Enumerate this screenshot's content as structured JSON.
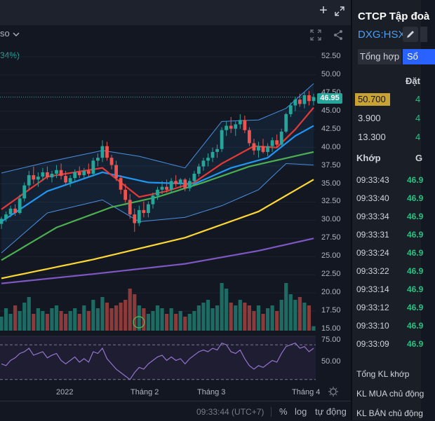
{
  "topbar": {
    "plus_icon": "plus-icon",
    "expand_icon": "expand-icon"
  },
  "toolbar": {
    "symbol_fragment": "so",
    "share_icon": "share-icon",
    "fullscreen_icon": "fullscreen-icon"
  },
  "indicator_change": "34%)",
  "price_axis": {
    "labels": [
      "52.50",
      "50.00",
      "47.50",
      "45.00",
      "42.50",
      "40.00",
      "37.50",
      "35.00",
      "32.50",
      "30.00",
      "27.50",
      "25.00",
      "22.50",
      "20.00",
      "17.50",
      "15.00"
    ],
    "last_price": "46.95",
    "last_price_color": "#26a69a"
  },
  "rsi_axis": {
    "labels": [
      "75.00",
      "50.00"
    ]
  },
  "time_axis": {
    "labels": [
      "2022",
      "Tháng 2",
      "Tháng 3",
      "Tháng 4"
    ]
  },
  "colors": {
    "up": "#26a69a",
    "down": "#ef5350",
    "ma_red": "#e53935",
    "ma_blue": "#2196f3",
    "ma_green": "#4caf50",
    "ma_yellow": "#fdd835",
    "ma_purple": "#7e57c2",
    "bollinger": "#4a90e2",
    "rsi": "#9575cd"
  },
  "bottombar": {
    "time": "09:33:44 (UTC+7)",
    "percent": "%",
    "log": "log",
    "auto": "tự động"
  },
  "side": {
    "title": "CTCP Tập đoà",
    "ticker": "DXG:HSX",
    "tabs": [
      "Tổng hợp",
      "Sổ"
    ],
    "order_header": "Đặt",
    "orderbook": [
      {
        "price": "50.700",
        "highlight": true,
        "value": "4"
      },
      {
        "price": "3.900",
        "highlight": false,
        "value": "4"
      },
      {
        "price": "13.300",
        "highlight": false,
        "value": "4"
      }
    ],
    "khop_label": "Khớp",
    "khop_col2": "G",
    "trades": [
      {
        "time": "09:33:43",
        "price": "46.9"
      },
      {
        "time": "09:33:40",
        "price": "46.9"
      },
      {
        "time": "09:33:34",
        "price": "46.9"
      },
      {
        "time": "09:33:31",
        "price": "46.9"
      },
      {
        "time": "09:33:24",
        "price": "46.9"
      },
      {
        "time": "09:33:22",
        "price": "46.9"
      },
      {
        "time": "09:33:14",
        "price": "46.9"
      },
      {
        "time": "09:33:12",
        "price": "46.9"
      },
      {
        "time": "09:33:10",
        "price": "46.9"
      },
      {
        "time": "09:33:09",
        "price": "46.9"
      }
    ],
    "summary": [
      "Tổng KL khớp",
      "KL MUA chủ động",
      "KL BÁN chủ động"
    ]
  },
  "chart_data": {
    "type": "candlestick",
    "ylim": [
      15,
      52.5
    ],
    "candles": [
      [
        29.5,
        30.5,
        28.8,
        30.2
      ],
      [
        30.2,
        31.2,
        29.8,
        30.8
      ],
      [
        30.8,
        32.0,
        30.4,
        31.6
      ],
      [
        31.6,
        32.2,
        30.6,
        31.0
      ],
      [
        31.0,
        33.5,
        30.8,
        33.0
      ],
      [
        33.0,
        35.2,
        32.6,
        34.8
      ],
      [
        34.8,
        36.8,
        34.2,
        36.2
      ],
      [
        36.2,
        37.4,
        35.0,
        35.6
      ],
      [
        35.6,
        36.6,
        34.6,
        36.0
      ],
      [
        36.0,
        37.2,
        35.4,
        36.6
      ],
      [
        36.6,
        37.4,
        35.6,
        35.9
      ],
      [
        35.9,
        36.8,
        35.2,
        36.4
      ],
      [
        36.4,
        37.6,
        35.8,
        36.9
      ],
      [
        36.9,
        37.8,
        35.6,
        36.1
      ],
      [
        36.1,
        36.8,
        34.8,
        35.2
      ],
      [
        35.2,
        36.2,
        34.6,
        35.8
      ],
      [
        35.8,
        37.0,
        35.2,
        36.6
      ],
      [
        36.6,
        37.4,
        35.8,
        36.2
      ],
      [
        36.2,
        37.2,
        35.6,
        36.8
      ],
      [
        36.8,
        37.8,
        36.0,
        36.4
      ],
      [
        36.4,
        38.6,
        36.0,
        38.2
      ],
      [
        38.2,
        39.2,
        37.4,
        38.6
      ],
      [
        38.6,
        41.0,
        38.0,
        40.2
      ],
      [
        40.2,
        40.8,
        38.2,
        38.6
      ],
      [
        38.6,
        39.0,
        37.0,
        37.6
      ],
      [
        37.6,
        38.2,
        35.4,
        35.8
      ],
      [
        35.8,
        36.2,
        33.6,
        34.2
      ],
      [
        34.2,
        35.0,
        32.4,
        32.8
      ],
      [
        32.8,
        33.6,
        30.2,
        30.8
      ],
      [
        30.8,
        31.6,
        28.4,
        29.6
      ],
      [
        29.6,
        32.0,
        29.2,
        31.4
      ],
      [
        31.4,
        32.6,
        30.4,
        31.0
      ],
      [
        31.0,
        32.6,
        30.4,
        32.2
      ],
      [
        32.2,
        33.8,
        31.6,
        33.4
      ],
      [
        33.4,
        34.6,
        32.8,
        34.2
      ],
      [
        34.2,
        35.4,
        33.6,
        34.6
      ],
      [
        34.6,
        35.6,
        33.8,
        34.2
      ],
      [
        34.2,
        35.8,
        33.8,
        35.4
      ],
      [
        35.4,
        36.2,
        34.6,
        35.0
      ],
      [
        35.0,
        35.8,
        34.4,
        35.6
      ],
      [
        35.6,
        35.8,
        34.0,
        34.4
      ],
      [
        34.4,
        35.8,
        34.0,
        35.4
      ],
      [
        35.4,
        36.8,
        35.0,
        36.4
      ],
      [
        36.4,
        37.8,
        36.0,
        37.4
      ],
      [
        37.4,
        38.6,
        36.8,
        38.2
      ],
      [
        38.2,
        39.2,
        37.4,
        38.6
      ],
      [
        38.6,
        40.0,
        38.0,
        39.4
      ],
      [
        39.4,
        40.4,
        38.6,
        39.8
      ],
      [
        39.8,
        42.8,
        39.4,
        42.4
      ],
      [
        42.4,
        43.6,
        41.6,
        43.0
      ],
      [
        43.0,
        44.2,
        42.0,
        42.6
      ],
      [
        42.6,
        43.6,
        41.6,
        43.2
      ],
      [
        43.2,
        44.6,
        42.6,
        43.8
      ],
      [
        43.8,
        44.4,
        42.0,
        42.4
      ],
      [
        42.4,
        42.8,
        40.2,
        40.6
      ],
      [
        40.6,
        41.2,
        39.0,
        39.6
      ],
      [
        39.6,
        40.8,
        38.6,
        40.2
      ],
      [
        40.2,
        41.2,
        39.2,
        39.4
      ],
      [
        39.4,
        40.6,
        38.8,
        40.2
      ],
      [
        40.2,
        41.4,
        39.4,
        41.0
      ],
      [
        41.0,
        41.8,
        40.0,
        40.4
      ],
      [
        40.4,
        42.6,
        40.0,
        42.2
      ],
      [
        42.2,
        44.8,
        42.0,
        44.6
      ],
      [
        44.6,
        46.2,
        44.2,
        45.8
      ],
      [
        45.8,
        47.0,
        45.0,
        46.6
      ],
      [
        46.6,
        47.4,
        45.6,
        46.0
      ],
      [
        46.0,
        47.6,
        45.4,
        47.2
      ],
      [
        47.2,
        47.8,
        45.8,
        46.4
      ],
      [
        46.4,
        47.4,
        45.8,
        46.95
      ]
    ],
    "volume_rel": [
      0.25,
      0.4,
      0.3,
      0.45,
      0.35,
      0.5,
      0.6,
      0.3,
      0.4,
      0.35,
      0.3,
      0.4,
      0.45,
      0.35,
      0.3,
      0.35,
      0.4,
      0.3,
      0.45,
      0.35,
      0.55,
      0.4,
      0.6,
      0.5,
      0.4,
      0.45,
      0.5,
      0.55,
      0.75,
      0.65,
      0.45,
      0.4,
      0.3,
      0.35,
      0.45,
      0.4,
      0.3,
      0.4,
      0.3,
      0.35,
      0.25,
      0.3,
      0.35,
      0.45,
      0.5,
      0.55,
      0.4,
      0.45,
      0.85,
      0.75,
      0.5,
      0.45,
      0.55,
      0.5,
      0.45,
      0.35,
      0.45,
      0.3,
      0.4,
      0.45,
      0.35,
      0.55,
      0.85,
      0.65,
      0.55,
      0.6,
      0.5,
      0.45,
      0.08
    ],
    "ma": {
      "red": [
        [
          0,
          31.5
        ],
        [
          10,
          36.0
        ],
        [
          22,
          37.2
        ],
        [
          30,
          33.2
        ],
        [
          36,
          34.0
        ],
        [
          42,
          35.2
        ],
        [
          48,
          37.8
        ],
        [
          55,
          40.2
        ],
        [
          60,
          40.0
        ],
        [
          64,
          42.5
        ],
        [
          68,
          45.5
        ]
      ],
      "blue": [
        [
          0,
          29.8
        ],
        [
          10,
          34.0
        ],
        [
          22,
          36.6
        ],
        [
          32,
          35.2
        ],
        [
          42,
          35.0
        ],
        [
          50,
          37.2
        ],
        [
          58,
          38.6
        ],
        [
          64,
          41.6
        ],
        [
          68,
          43.0
        ]
      ],
      "green": [
        [
          0,
          24.5
        ],
        [
          12,
          29.0
        ],
        [
          24,
          31.8
        ],
        [
          34,
          33.2
        ],
        [
          44,
          35.2
        ],
        [
          54,
          37.4
        ],
        [
          68,
          39.4
        ]
      ],
      "yellow": [
        [
          0,
          22.0
        ],
        [
          20,
          24.6
        ],
        [
          40,
          27.6
        ],
        [
          56,
          31.2
        ],
        [
          68,
          35.6
        ]
      ],
      "purple": [
        [
          0,
          21.3
        ],
        [
          20,
          22.6
        ],
        [
          40,
          24.0
        ],
        [
          56,
          25.8
        ],
        [
          68,
          27.5
        ]
      ],
      "bb_upper": [
        [
          0,
          36.5
        ],
        [
          10,
          38.0
        ],
        [
          22,
          39.6
        ],
        [
          30,
          38.8
        ],
        [
          40,
          37.2
        ],
        [
          48,
          43.6
        ],
        [
          56,
          43.8
        ],
        [
          62,
          45.4
        ],
        [
          68,
          48.8
        ]
      ],
      "bb_lower": [
        [
          0,
          25.5
        ],
        [
          10,
          31.0
        ],
        [
          22,
          32.8
        ],
        [
          30,
          29.8
        ],
        [
          40,
          30.4
        ],
        [
          48,
          32.0
        ],
        [
          56,
          34.2
        ],
        [
          62,
          37.8
        ],
        [
          68,
          37.6
        ]
      ]
    },
    "rsi": [
      48,
      46,
      52,
      55,
      60,
      62,
      66,
      58,
      60,
      62,
      55,
      58,
      60,
      52,
      48,
      52,
      56,
      50,
      54,
      50,
      62,
      60,
      66,
      54,
      48,
      42,
      38,
      34,
      30,
      38,
      44,
      42,
      48,
      52,
      56,
      58,
      52,
      56,
      52,
      54,
      48,
      54,
      58,
      62,
      64,
      62,
      66,
      64,
      72,
      70,
      62,
      60,
      64,
      54,
      46,
      42,
      46,
      44,
      48,
      52,
      50,
      60,
      68,
      70,
      72,
      66,
      68,
      62,
      66
    ],
    "rsi_levels": [
      70,
      30
    ]
  }
}
